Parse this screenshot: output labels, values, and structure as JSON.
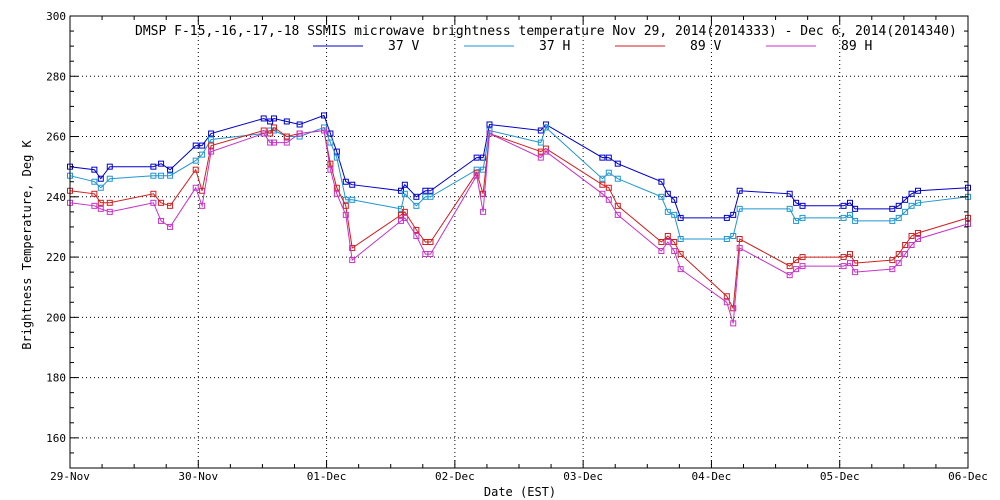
{
  "chart_data": {
    "type": "line",
    "title": "DMSP F-15,-16,-17,-18 SSMIS microwave brightness temperature Nov 29, 2014(2014333) - Dec  6, 2014(2014340)",
    "xlabel": "Date (EST)",
    "ylabel": "Brightness Temperature, Deg K",
    "xlim": [
      0,
      7
    ],
    "ylim": [
      150,
      300
    ],
    "x_unit": "days since 29-Nov 00:00 EST",
    "grid": true,
    "legend_position": "top-center",
    "x_tick_labels": [
      "29-Nov",
      "30-Nov",
      "01-Dec",
      "02-Dec",
      "03-Dec",
      "04-Dec",
      "05-Dec",
      "06-Dec"
    ],
    "x_ticks": [
      0,
      1,
      2,
      3,
      4,
      5,
      6,
      7
    ],
    "y_ticks": [
      160,
      180,
      200,
      220,
      240,
      260,
      280,
      300
    ],
    "x": [
      0.0,
      0.19,
      0.24,
      0.31,
      0.65,
      0.71,
      0.78,
      0.98,
      1.03,
      1.1,
      1.51,
      1.56,
      1.59,
      1.69,
      1.79,
      1.98,
      2.03,
      2.08,
      2.15,
      2.2,
      2.58,
      2.61,
      2.7,
      2.77,
      2.81,
      3.17,
      3.22,
      3.27,
      3.67,
      3.71,
      4.15,
      4.2,
      4.27,
      4.61,
      4.66,
      4.71,
      4.76,
      5.12,
      5.17,
      5.22,
      5.61,
      5.66,
      5.71,
      6.03,
      6.08,
      6.12,
      6.41,
      6.46,
      6.51,
      6.56,
      6.61,
      7.0
    ],
    "series": [
      {
        "name": "37 V",
        "color": "#0000c8",
        "values": [
          250,
          249,
          246,
          250,
          250,
          251,
          249,
          257,
          257,
          261,
          266,
          265,
          266,
          265,
          264,
          267,
          261,
          255,
          245,
          244,
          242,
          244,
          240,
          242,
          242,
          253,
          253,
          264,
          262,
          264,
          253,
          253,
          251,
          245,
          241,
          239,
          233,
          233,
          234,
          242,
          241,
          238,
          237,
          237,
          238,
          236,
          236,
          237,
          239,
          241,
          242,
          243
        ]
      },
      {
        "name": "37 H",
        "color": "#1e96d2",
        "values": [
          247,
          245,
          243,
          246,
          247,
          247,
          247,
          252,
          254,
          259,
          261,
          262,
          262,
          260,
          260,
          263,
          258,
          253,
          239,
          239,
          236,
          241,
          237,
          240,
          240,
          249,
          249,
          262,
          258,
          263,
          246,
          248,
          246,
          240,
          235,
          234,
          226,
          226,
          227,
          236,
          236,
          232,
          233,
          233,
          234,
          232,
          232,
          233,
          235,
          237,
          238,
          240
        ]
      },
      {
        "name": "89 V",
        "color": "#d21e1e",
        "values": [
          242,
          241,
          238,
          238,
          241,
          238,
          237,
          249,
          242,
          257,
          262,
          261,
          263,
          260,
          261,
          262,
          251,
          243,
          237,
          223,
          234,
          235,
          229,
          225,
          225,
          248,
          241,
          261,
          255,
          256,
          244,
          243,
          237,
          225,
          227,
          225,
          221,
          207,
          203,
          226,
          217,
          219,
          220,
          220,
          221,
          218,
          219,
          221,
          224,
          227,
          228,
          233
        ]
      },
      {
        "name": "89 H",
        "color": "#c832c8",
        "values": [
          238,
          237,
          236,
          235,
          238,
          232,
          230,
          243,
          237,
          255,
          261,
          258,
          258,
          258,
          261,
          262,
          249,
          241,
          234,
          219,
          232,
          233,
          227,
          221,
          221,
          247,
          235,
          261,
          253,
          255,
          241,
          239,
          234,
          222,
          225,
          222,
          216,
          205,
          198,
          223,
          214,
          216,
          217,
          217,
          218,
          215,
          216,
          218,
          221,
          224,
          226,
          231
        ]
      }
    ]
  }
}
